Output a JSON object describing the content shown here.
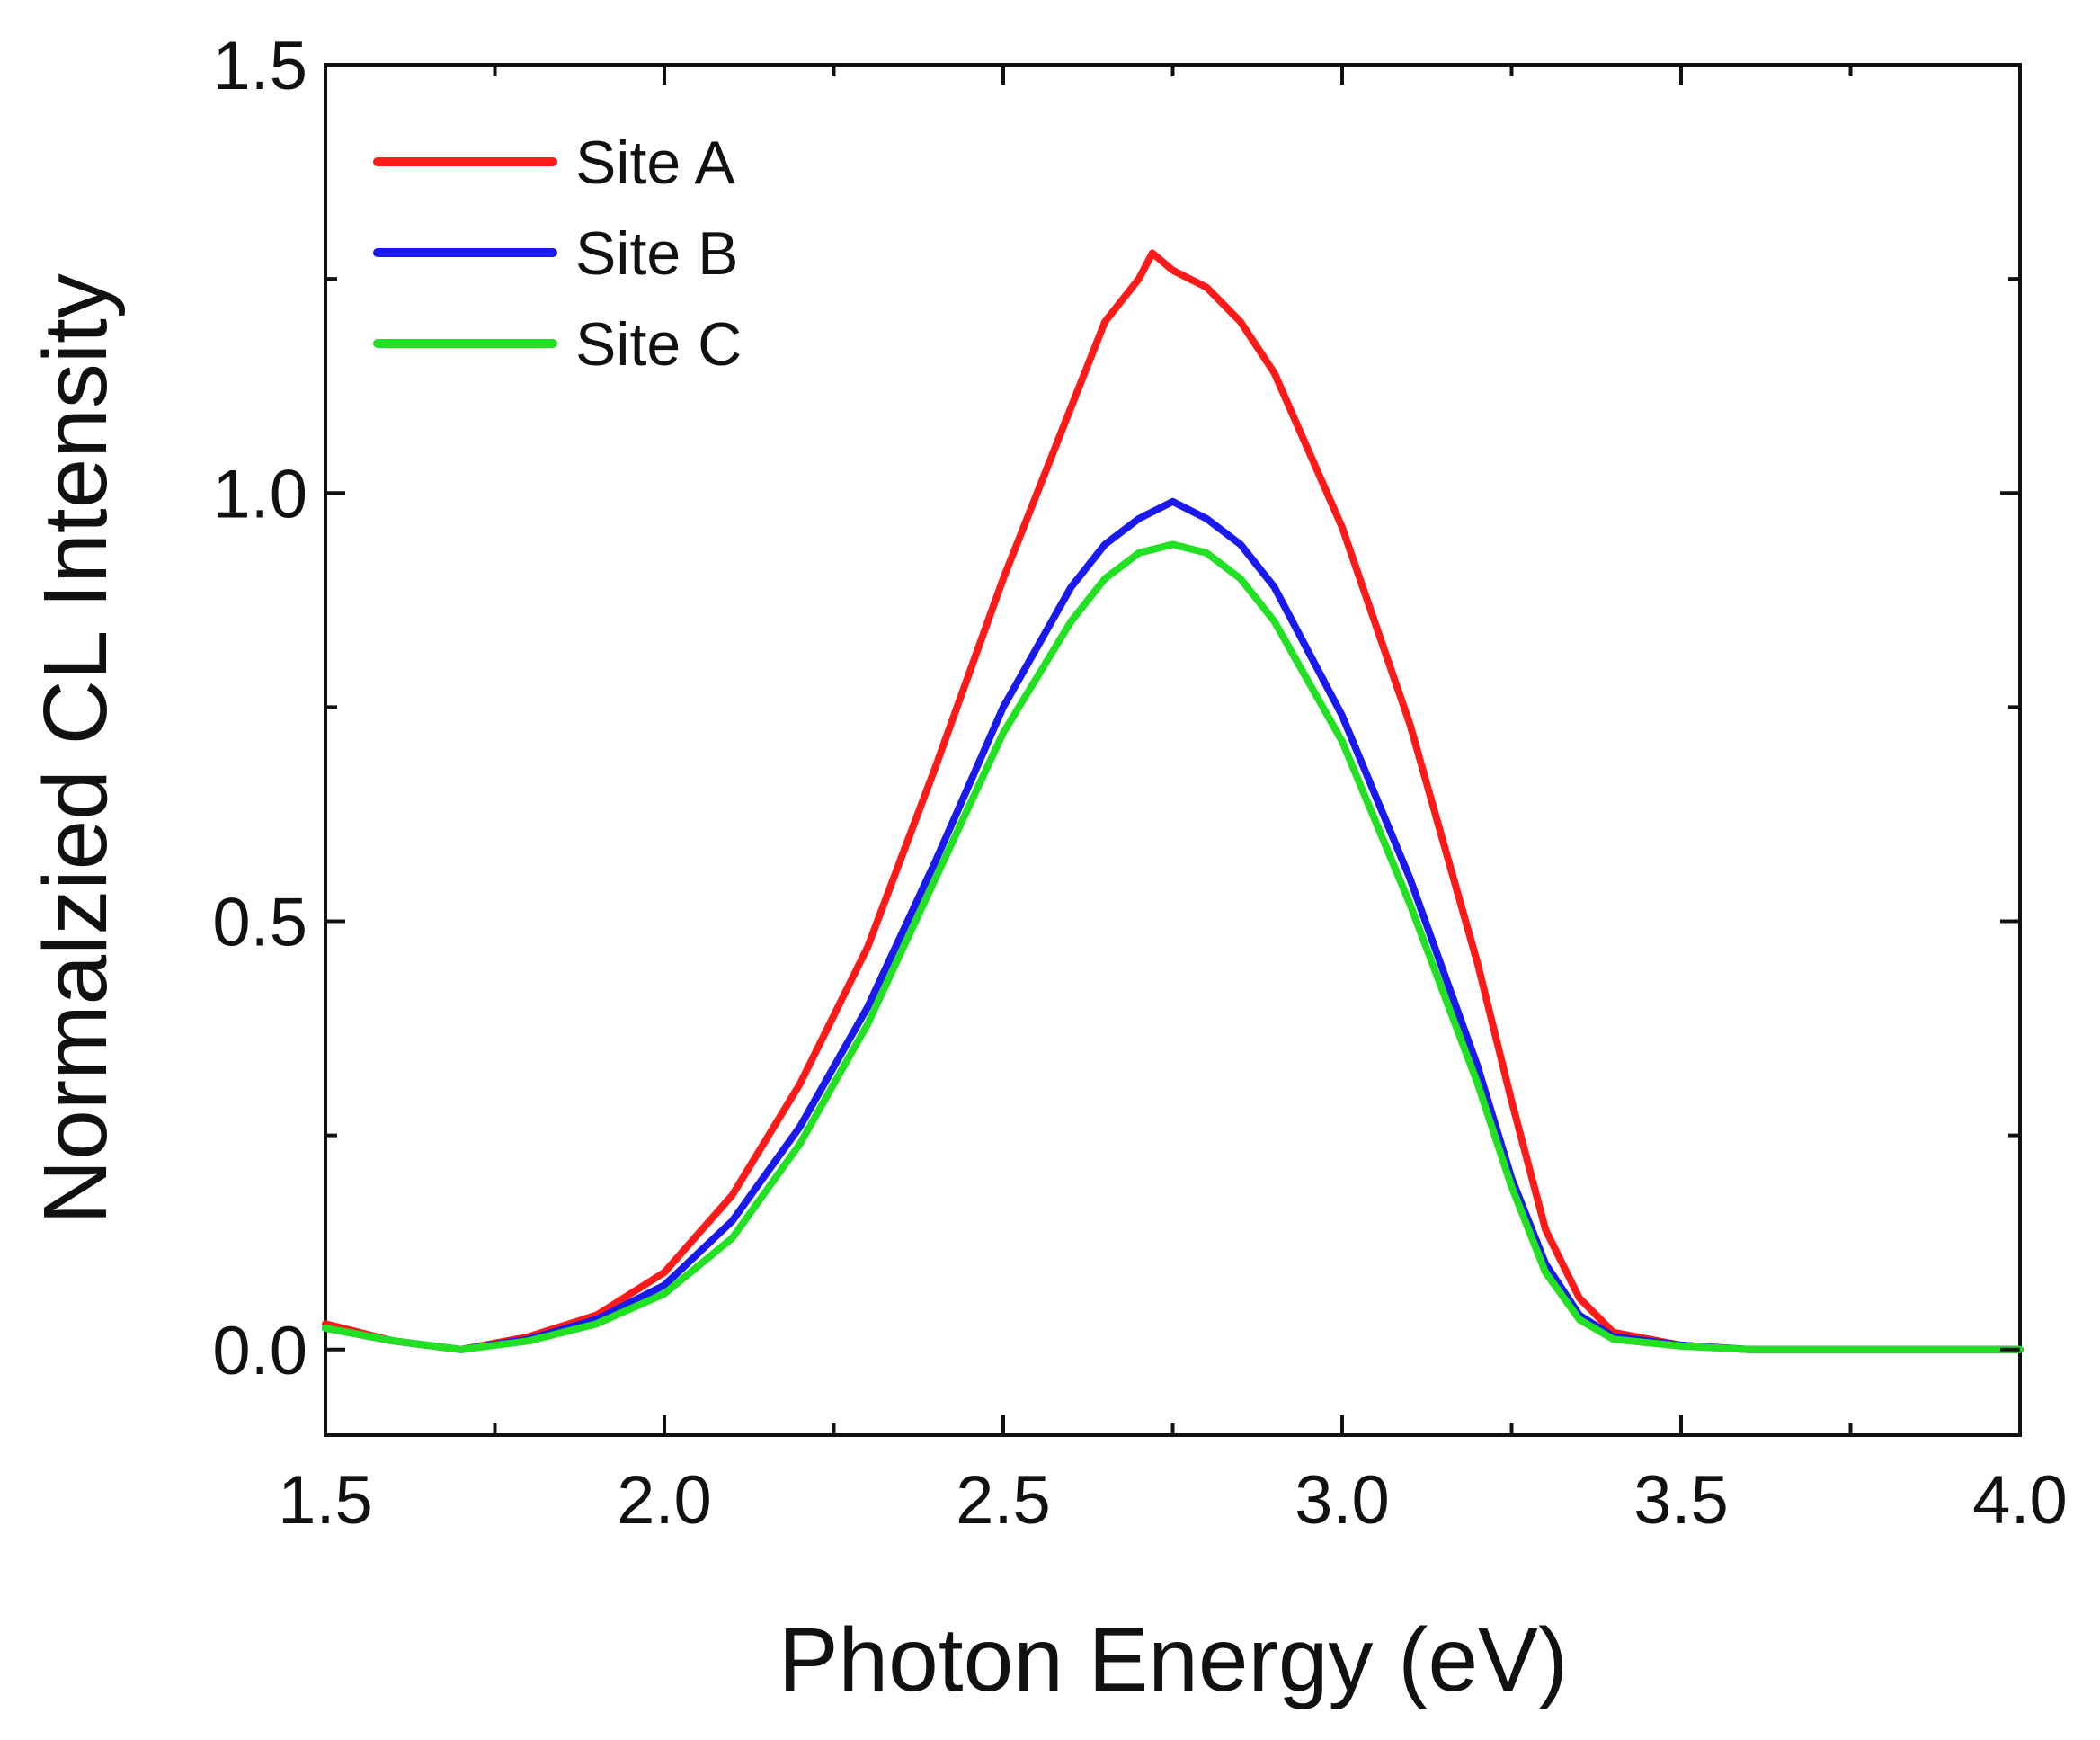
{
  "chart_data": {
    "type": "line",
    "title": "",
    "xlabel": "Photon Energy (eV)",
    "ylabel": "Normalzied CL Intensity",
    "xlim": [
      1.5,
      4.0
    ],
    "ylim": [
      -0.1,
      1.5
    ],
    "xticks": [
      "1.5",
      "2.0",
      "2.5",
      "3.0",
      "3.5",
      "4.0"
    ],
    "yticks": [
      "0.0",
      "0.5",
      "1.0",
      "1.5"
    ],
    "grid": false,
    "legend_position": "top-left",
    "series": [
      {
        "name": "Site A",
        "color": "#ff1a1a",
        "x": [
          1.5,
          1.6,
          1.7,
          1.8,
          1.9,
          2.0,
          2.1,
          2.2,
          2.3,
          2.4,
          2.5,
          2.6,
          2.65,
          2.7,
          2.72,
          2.75,
          2.8,
          2.85,
          2.9,
          3.0,
          3.1,
          3.2,
          3.25,
          3.3,
          3.35,
          3.4,
          3.5,
          3.6,
          3.7,
          3.8,
          3.9,
          4.0
        ],
        "y": [
          0.03,
          0.01,
          0.0,
          0.015,
          0.04,
          0.09,
          0.18,
          0.31,
          0.47,
          0.68,
          0.9,
          1.1,
          1.2,
          1.25,
          1.28,
          1.26,
          1.24,
          1.2,
          1.14,
          0.96,
          0.73,
          0.45,
          0.29,
          0.14,
          0.06,
          0.02,
          0.005,
          0.0,
          0.0,
          0.0,
          0.0,
          0.0
        ]
      },
      {
        "name": "Site B",
        "color": "#1a1aee",
        "x": [
          1.5,
          1.6,
          1.7,
          1.8,
          1.9,
          2.0,
          2.1,
          2.2,
          2.3,
          2.4,
          2.5,
          2.6,
          2.65,
          2.7,
          2.75,
          2.8,
          2.85,
          2.9,
          3.0,
          3.1,
          3.2,
          3.25,
          3.3,
          3.35,
          3.4,
          3.5,
          3.6,
          3.7,
          3.8,
          3.9,
          4.0
        ],
        "y": [
          0.025,
          0.01,
          0.0,
          0.012,
          0.035,
          0.075,
          0.15,
          0.26,
          0.4,
          0.57,
          0.75,
          0.89,
          0.94,
          0.97,
          0.99,
          0.97,
          0.94,
          0.89,
          0.74,
          0.55,
          0.33,
          0.2,
          0.1,
          0.04,
          0.015,
          0.005,
          0.0,
          0.0,
          0.0,
          0.0,
          0.0
        ]
      },
      {
        "name": "Site C",
        "color": "#22e022",
        "x": [
          1.5,
          1.6,
          1.7,
          1.8,
          1.9,
          2.0,
          2.1,
          2.2,
          2.3,
          2.4,
          2.5,
          2.6,
          2.65,
          2.7,
          2.75,
          2.8,
          2.85,
          2.9,
          3.0,
          3.1,
          3.2,
          3.25,
          3.3,
          3.35,
          3.4,
          3.5,
          3.6,
          3.7,
          3.8,
          3.9,
          4.0
        ],
        "y": [
          0.025,
          0.01,
          0.0,
          0.01,
          0.03,
          0.065,
          0.13,
          0.24,
          0.38,
          0.55,
          0.72,
          0.85,
          0.9,
          0.93,
          0.94,
          0.93,
          0.9,
          0.85,
          0.71,
          0.52,
          0.31,
          0.19,
          0.09,
          0.035,
          0.012,
          0.004,
          0.0,
          0.0,
          0.0,
          0.0,
          0.0
        ]
      }
    ]
  }
}
